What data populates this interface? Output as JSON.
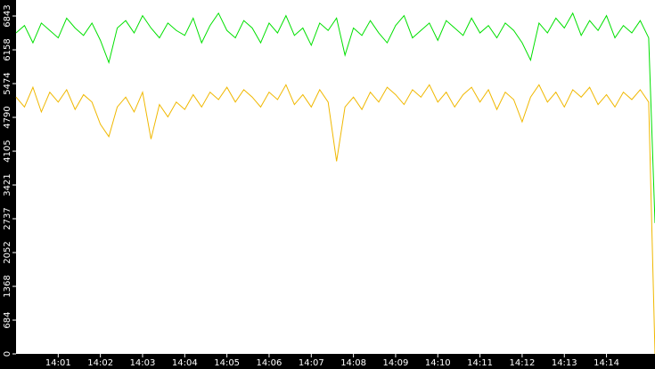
{
  "chart_data": {
    "type": "line",
    "x": [
      0,
      0.2,
      0.4,
      0.6,
      0.8,
      1,
      1.2,
      1.4,
      1.6,
      1.8,
      2,
      2.2,
      2.4,
      2.6,
      2.8,
      3,
      3.2,
      3.4,
      3.6,
      3.8,
      4,
      4.2,
      4.4,
      4.6,
      4.8,
      5,
      5.2,
      5.4,
      5.6,
      5.8,
      6,
      6.2,
      6.4,
      6.6,
      6.8,
      7,
      7.2,
      7.4,
      7.6,
      7.8,
      8,
      8.2,
      8.4,
      8.6,
      8.8,
      9,
      9.2,
      9.4,
      9.6,
      9.8,
      10,
      10.2,
      10.4,
      10.6,
      10.8,
      11,
      11.2,
      11.4,
      11.6,
      11.8,
      12,
      12.2,
      12.4,
      12.6,
      12.8,
      13,
      13.2,
      13.4,
      13.6,
      13.8,
      14,
      14.2,
      14.4,
      14.6,
      14.8,
      15,
      15.15
    ],
    "series": [
      {
        "color": "#00e000",
        "values": [
          6500,
          6650,
          6300,
          6700,
          6550,
          6400,
          6800,
          6600,
          6450,
          6700,
          6350,
          5900,
          6600,
          6750,
          6500,
          6850,
          6600,
          6400,
          6700,
          6550,
          6450,
          6800,
          6300,
          6650,
          6900,
          6550,
          6400,
          6750,
          6600,
          6300,
          6700,
          6500,
          6850,
          6450,
          6600,
          6250,
          6700,
          6550,
          6800,
          6050,
          6600,
          6450,
          6750,
          6500,
          6300,
          6650,
          6850,
          6400,
          6550,
          6700,
          6350,
          6750,
          6600,
          6450,
          6800,
          6500,
          6650,
          6400,
          6700,
          6550,
          6300,
          5950,
          6700,
          6500,
          6800,
          6600,
          6900,
          6450,
          6750,
          6550,
          6850,
          6400,
          6650,
          6500,
          6750,
          6400,
          2650
        ]
      },
      {
        "color": "#f0b800",
        "values": [
          5200,
          5000,
          5400,
          4900,
          5300,
          5100,
          5350,
          4950,
          5250,
          5100,
          4650,
          4400,
          5000,
          5200,
          4900,
          5300,
          4350,
          5050,
          4800,
          5100,
          4950,
          5250,
          5000,
          5300,
          5150,
          5400,
          5100,
          5350,
          5200,
          5000,
          5300,
          5150,
          5450,
          5050,
          5250,
          5000,
          5350,
          5100,
          3900,
          5000,
          5200,
          4950,
          5300,
          5100,
          5400,
          5250,
          5050,
          5350,
          5200,
          5450,
          5100,
          5300,
          5000,
          5250,
          5400,
          5100,
          5350,
          4950,
          5300,
          5150,
          4700,
          5200,
          5450,
          5100,
          5300,
          5000,
          5350,
          5200,
          5400,
          5050,
          5250,
          5000,
          5300,
          5150,
          5350,
          5100,
          0
        ]
      }
    ],
    "xlim": [
      0,
      15.15
    ],
    "xticks": [
      {
        "value": 1,
        "label": "14:01"
      },
      {
        "value": 2,
        "label": "14:02"
      },
      {
        "value": 3,
        "label": "14:03"
      },
      {
        "value": 4,
        "label": "14:04"
      },
      {
        "value": 5,
        "label": "14:05"
      },
      {
        "value": 6,
        "label": "14:06"
      },
      {
        "value": 7,
        "label": "14:07"
      },
      {
        "value": 8,
        "label": "14:08"
      },
      {
        "value": 9,
        "label": "14:09"
      },
      {
        "value": 10,
        "label": "14:10"
      },
      {
        "value": 11,
        "label": "14:11"
      },
      {
        "value": 12,
        "label": "14:12"
      },
      {
        "value": 13,
        "label": "14:13"
      },
      {
        "value": 14,
        "label": "14:14"
      }
    ],
    "ylim": [
      0,
      7167
    ],
    "yticks": [
      0,
      684,
      1368,
      2052,
      2737,
      3421,
      4105,
      4790,
      5474,
      6158,
      6843
    ]
  }
}
